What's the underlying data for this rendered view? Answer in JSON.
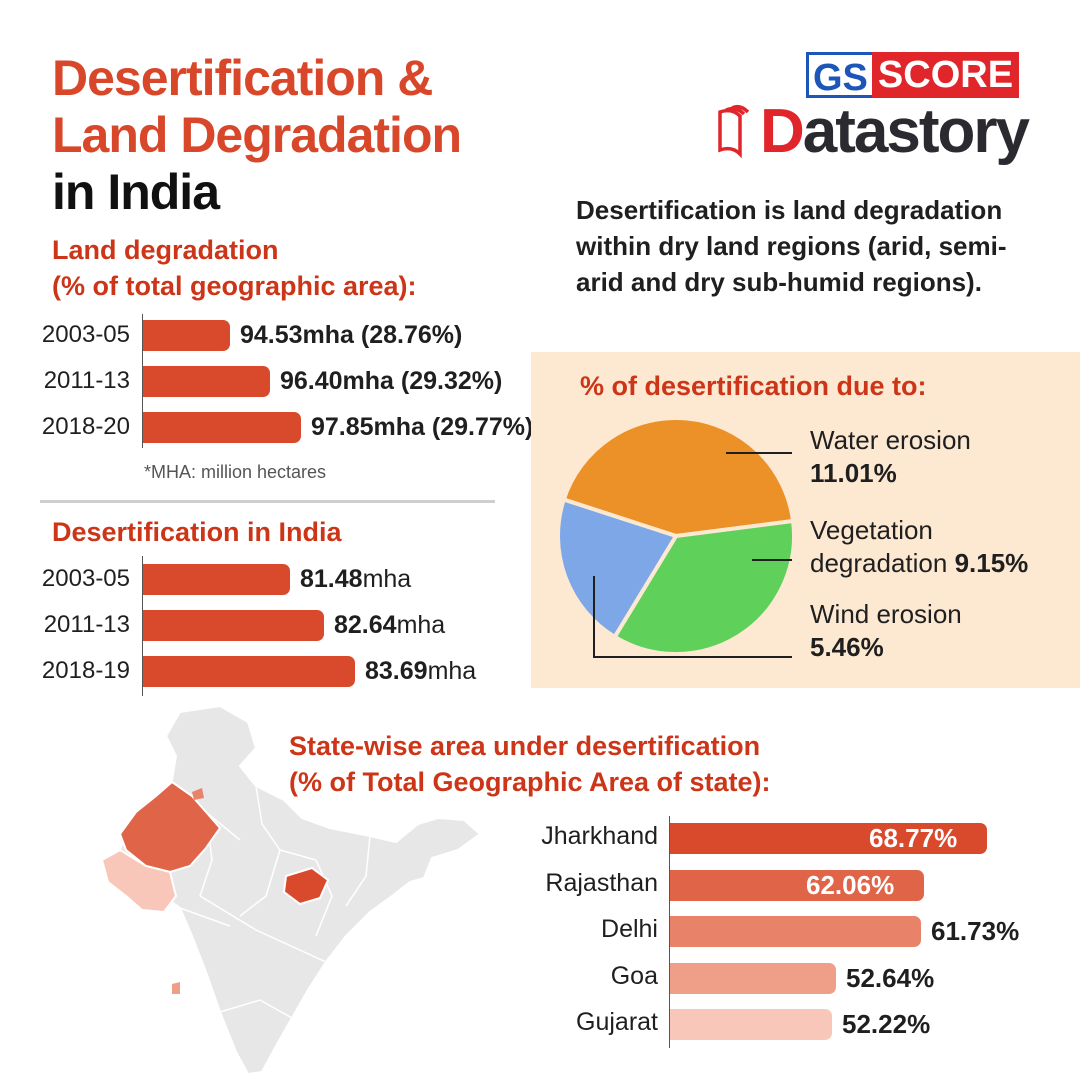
{
  "header": {
    "title_line1": "Desertification &",
    "title_line2": "Land Degradation",
    "title_line3": "in India"
  },
  "logo": {
    "gs": "GS",
    "score": "SCORE",
    "word_first": "D",
    "word_rest": "atastory"
  },
  "description": "Desertification is land degradation within dry land regions (arid, semi-arid and dry sub-humid regions).",
  "colors": {
    "accent": "#d9472a",
    "heading": "#cc3517",
    "panel": "#fde8d2",
    "water": "#ec9127",
    "vegetation": "#5fd05a",
    "wind": "#7ea7e8"
  },
  "chart_data": [
    {
      "type": "bar",
      "title": "Land degradation",
      "subtitle": "(% of total geographic area):",
      "categories": [
        "2003-05",
        "2011-13",
        "2018-20"
      ],
      "values": [
        94.53,
        96.4,
        97.85
      ],
      "percent": [
        28.76,
        29.32,
        29.77
      ],
      "labels": [
        {
          "value": "94.53mha",
          "pct": "(28.76%)"
        },
        {
          "value": "96.40mha",
          "pct": "(29.32%)"
        },
        {
          "value": "97.85mha",
          "pct": "(29.77%)"
        }
      ],
      "note": "*MHA: million hectares",
      "color": "#d9492b"
    },
    {
      "type": "bar",
      "title": "Desertification in India",
      "categories": [
        "2003-05",
        "2011-13",
        "2018-19"
      ],
      "values": [
        81.48,
        82.64,
        83.69
      ],
      "labels": [
        {
          "value": "81.48",
          "unit": "mha"
        },
        {
          "value": "82.64",
          "unit": "mha"
        },
        {
          "value": "83.69",
          "unit": "mha"
        }
      ],
      "color": "#d9492b"
    },
    {
      "type": "pie",
      "title": "% of desertification due to:",
      "slices": [
        {
          "name_line1": "Water erosion",
          "name_line2": "",
          "label": "11.01%",
          "value": 11.01,
          "color": "#ec9127"
        },
        {
          "name_line1": "Vegetation",
          "name_line2": "degradation",
          "label": "9.15%",
          "value": 9.15,
          "color": "#5fd05a"
        },
        {
          "name_line1": "Wind erosion",
          "name_line2": "",
          "label": "5.46%",
          "value": 5.46,
          "color": "#7ea7e8"
        }
      ]
    },
    {
      "type": "bar",
      "title": "State-wise area under desertification",
      "subtitle": "(% of Total Geographic Area of state):",
      "categories": [
        "Jharkhand",
        "Rajasthan",
        "Delhi",
        "Goa",
        "Gujarat"
      ],
      "values": [
        68.77,
        62.06,
        61.73,
        52.64,
        52.22
      ],
      "labels": [
        "68.77%",
        "62.06%",
        "61.73%",
        "52.64%",
        "52.22%"
      ],
      "colors": [
        "#d9492b",
        "#e06447",
        "#e8836a",
        "#ef9f88",
        "#f8c7ba"
      ]
    }
  ]
}
